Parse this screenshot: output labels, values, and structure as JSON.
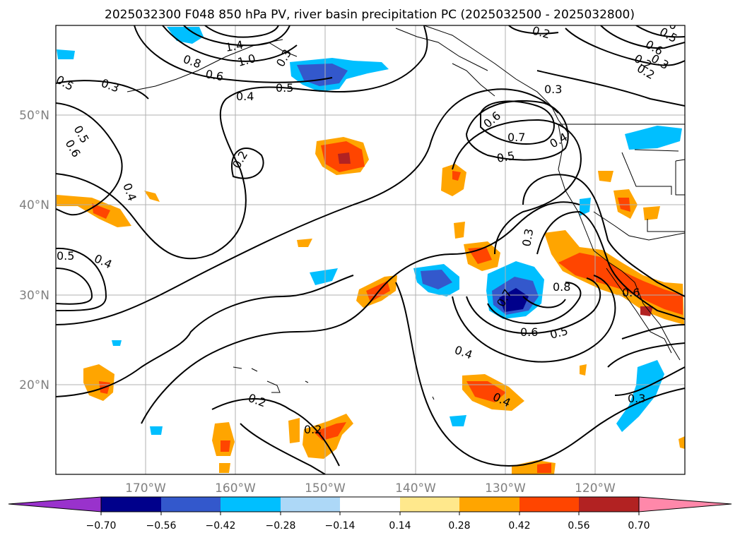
{
  "title": "2025032300 F048 850 hPa PV, river basin precipitation PC (2025032500 - 2025032800)",
  "map": {
    "lon_ticks": [
      "170°W",
      "160°W",
      "150°W",
      "140°W",
      "130°W",
      "120°W"
    ],
    "lat_ticks": [
      "50°N",
      "40°N",
      "30°N",
      "20°N"
    ],
    "gridlines": true,
    "extent": {
      "lon": [
        -180,
        -110
      ],
      "lat": [
        10,
        60
      ]
    }
  },
  "colorbar": {
    "ticks": [
      "−0.70",
      "−0.56",
      "−0.42",
      "−0.28",
      "−0.14",
      "0.14",
      "0.28",
      "0.42",
      "0.56",
      "0.70"
    ],
    "colors": [
      "#9932cc",
      "#00008b",
      "#3358cc",
      "#00bfff",
      "#add8f7",
      "#ffffff",
      "#ffe88c",
      "#ffa500",
      "#ff4500",
      "#b22222",
      "#ff88aa"
    ],
    "extend": "both"
  },
  "contour_labels": [
    "1.4",
    "1.0",
    "0.8",
    "0.6",
    "0.5",
    "0.4",
    "0.3",
    "0.2",
    "0.3",
    "0.6",
    "0.5",
    "0.2",
    "0.5",
    "0.6",
    "0.4",
    "0.5",
    "0.4",
    "0.2",
    "0.6",
    "0.7",
    "0.5",
    "0.4",
    "0.3",
    "0.3",
    "0.8",
    "0.7",
    "0.6",
    "0.5",
    "0.4",
    "0.4",
    "0.3",
    "0.2",
    "0.2",
    "0.5",
    "0.6",
    "0.3",
    "0.2",
    "0.6"
  ]
}
